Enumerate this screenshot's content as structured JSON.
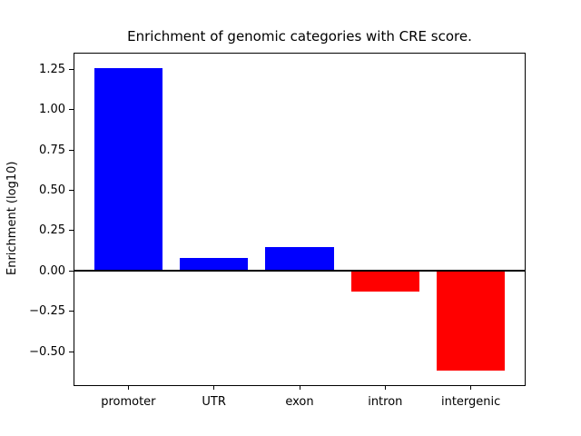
{
  "chart_data": {
    "type": "bar",
    "title": "Enrichment of genomic categories with CRE score.",
    "xlabel": "",
    "ylabel": "Enrichment (log10)",
    "categories": [
      "promoter",
      "UTR",
      "exon",
      "intron",
      "intergenic"
    ],
    "values": [
      1.26,
      0.08,
      0.15,
      -0.13,
      -0.62
    ],
    "yticks": [
      1.25,
      1.0,
      0.75,
      0.5,
      0.25,
      0.0,
      -0.25,
      -0.5
    ],
    "ylim": [
      -0.714,
      1.354
    ],
    "xlim": [
      -0.64,
      4.64
    ],
    "bar_width_fraction": 0.8,
    "grid": false,
    "legend": "none",
    "colors": {
      "positive_bar": "#0000ff",
      "negative_bar": "#ff0000",
      "zero_line": "#000000",
      "axis": "#000000",
      "background": "#ffffff"
    }
  }
}
